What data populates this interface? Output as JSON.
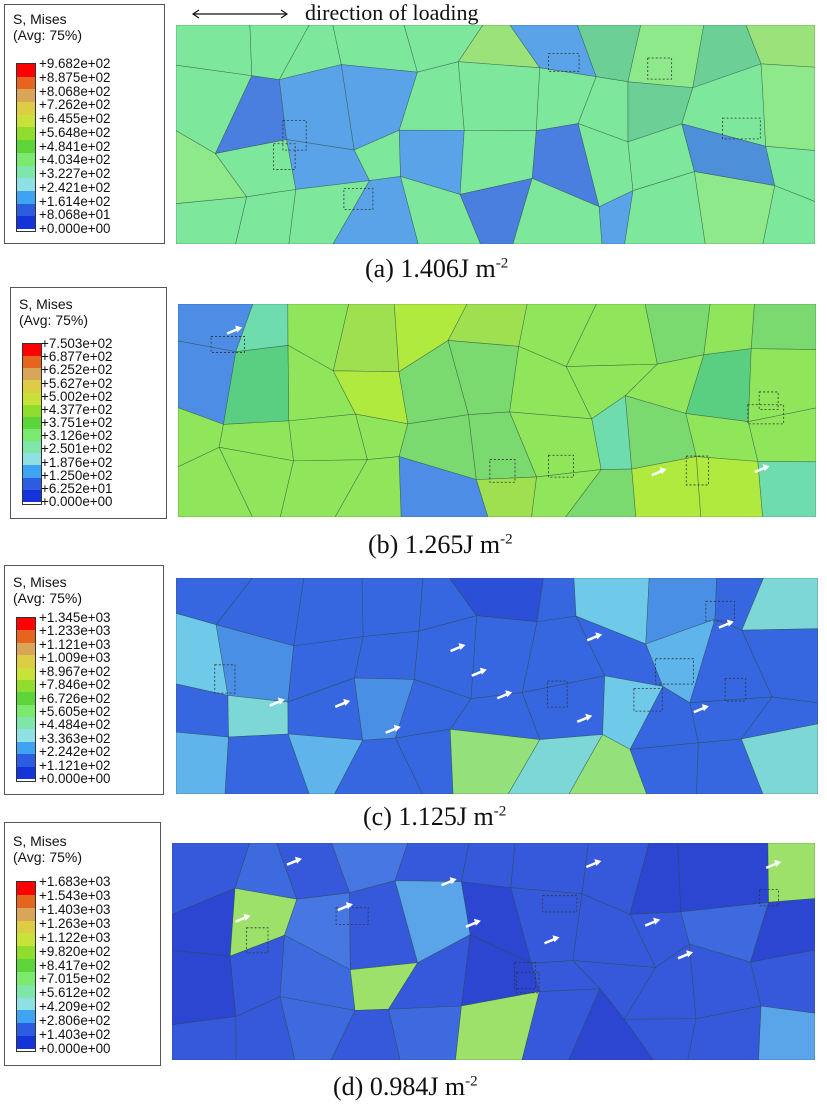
{
  "header": {
    "loading_label": "direction of loading"
  },
  "legend_title_1": "S, Mises",
  "legend_title_2": "(Avg: 75%)",
  "colors": [
    "#ff0000",
    "#e5641e",
    "#d9a659",
    "#dccd44",
    "#c8e23a",
    "#90dd2e",
    "#5ed43b",
    "#7be86e",
    "#7ee6a8",
    "#8fe0e2",
    "#3ea3f0",
    "#2c5de0",
    "#1433d8"
  ],
  "panels": [
    {
      "caption_prefix": "(a) 1.406J m",
      "caption_exp": "-2",
      "ticks": [
        "+9.682e+02",
        "+8.875e+02",
        "+8.068e+02",
        "+7.262e+02",
        "+6.455e+02",
        "+5.648e+02",
        "+4.841e+02",
        "+4.034e+02",
        "+3.227e+02",
        "+2.421e+02",
        "+1.614e+02",
        "+8.068e+01",
        "+0.000e+00"
      ],
      "base_color": "#7de89c",
      "patch_colors": [
        "#8ee98a",
        "#6ccf95",
        "#5aa3e8",
        "#4a7fe0",
        "#9be27a",
        "#4e8fd9"
      ]
    },
    {
      "caption_prefix": "(b) 1.265J m",
      "caption_exp": "-2",
      "ticks": [
        "+7.503e+02",
        "+6.877e+02",
        "+6.252e+02",
        "+5.627e+02",
        "+5.002e+02",
        "+4.377e+02",
        "+3.751e+02",
        "+3.126e+02",
        "+2.501e+02",
        "+1.876e+02",
        "+1.250e+02",
        "+6.252e+01",
        "+0.000e+00"
      ],
      "base_color": "#8fe65a",
      "patch_colors": [
        "#7ad96f",
        "#b1ea3e",
        "#6fdcae",
        "#4d8de6",
        "#9ee04f",
        "#5bcf81"
      ]
    },
    {
      "caption_prefix": "(c) 1.125J m",
      "caption_exp": "-2",
      "ticks": [
        "+1.345e+03",
        "+1.233e+03",
        "+1.121e+03",
        "+1.009e+03",
        "+8.967e+02",
        "+7.846e+02",
        "+6.726e+02",
        "+5.605e+02",
        "+4.484e+02",
        "+3.363e+02",
        "+2.242e+02",
        "+1.121e+02",
        "+0.000e+00"
      ],
      "base_color": "#3667e0",
      "patch_colors": [
        "#5fb4ec",
        "#4a8fe6",
        "#7dd7d6",
        "#2b4fd6",
        "#94e07a",
        "#6fc9e8"
      ]
    },
    {
      "caption_prefix": "(d) 0.984J m",
      "caption_exp": "-2",
      "ticks": [
        "+1.683e+03",
        "+1.543e+03",
        "+1.403e+03",
        "+1.263e+03",
        "+1.122e+03",
        "+9.820e+02",
        "+8.417e+02",
        "+7.015e+02",
        "+5.612e+02",
        "+4.209e+02",
        "+2.806e+02",
        "+1.403e+02",
        "+0.000e+00"
      ],
      "base_color": "#3659dc",
      "patch_colors": [
        "#4777e2",
        "#2c46d2",
        "#5aa5ea",
        "#85dcc7",
        "#9ee16a",
        "#3d6ade"
      ]
    }
  ]
}
